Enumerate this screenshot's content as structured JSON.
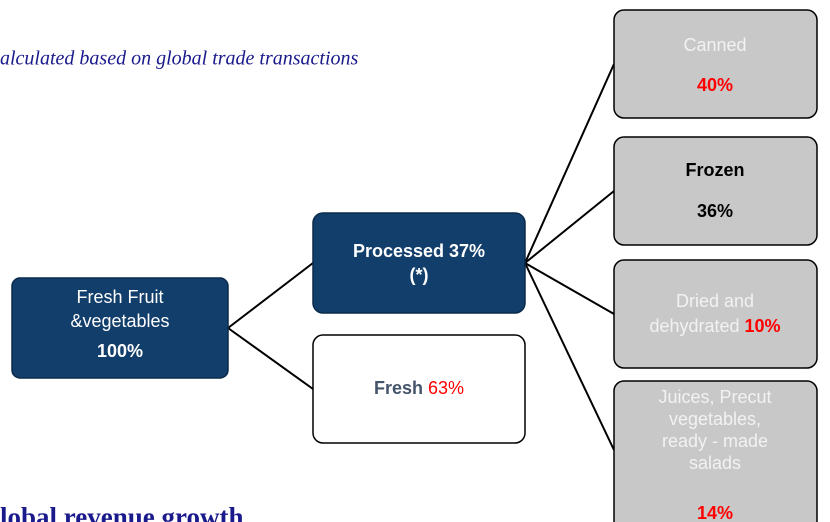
{
  "header": {
    "note": "alculated based on global trade transactions",
    "footer_title": "lobal revenue growth"
  },
  "nodes": [
    {
      "lines": [
        "Fresh  Fruit",
        "&vegetables"
      ],
      "value": "100%"
    },
    {
      "lines": [
        "Processed 37%",
        "(*)"
      ]
    },
    {
      "label": "Fresh",
      "value": "63%"
    },
    {
      "label": "Canned",
      "value": "40%"
    },
    {
      "label": "Frozen",
      "value": "36%"
    },
    {
      "lines": [
        "Dried and",
        "dehydrated"
      ],
      "value": "10%"
    },
    {
      "lines": [
        "Juices, Precut",
        "vegetables,",
        "ready - made",
        "salads"
      ],
      "value": "14%"
    }
  ]
}
